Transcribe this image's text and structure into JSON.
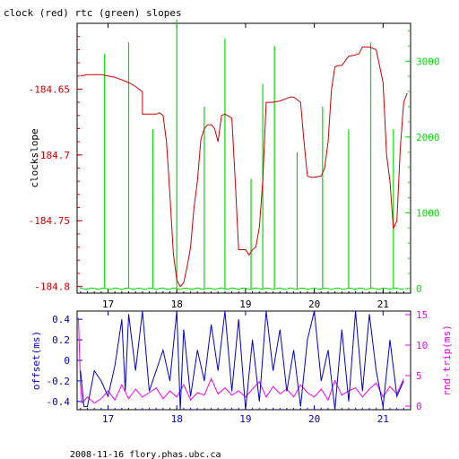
{
  "title": "clock (red) rtc (green) slopes",
  "footer": "2008-11-16 flory.phas.ubc.ca",
  "colors": {
    "clock": "#cc0000",
    "rtc": "#00dd00",
    "offset": "#0000cc",
    "rndtrip": "#ee00ee",
    "frame": "#000000"
  },
  "chart_data": [
    {
      "type": "line",
      "ylabel": "clockslope",
      "y2label": "",
      "xlim": [
        16.55,
        21.4
      ],
      "ylim": [
        -184.805,
        -184.6
      ],
      "y2lim": [
        -60,
        3500
      ],
      "xticks": [
        "17",
        "18",
        "19",
        "20",
        "21"
      ],
      "yticks": [
        "-184.65",
        "-184.7",
        "-184.75",
        "-184.8"
      ],
      "y2ticks": [
        "3000",
        "2000",
        "1000",
        "0"
      ],
      "grid": false,
      "series": [
        {
          "name": "clock",
          "x": [
            16.6,
            16.7,
            16.8,
            16.9,
            17.0,
            17.1,
            17.2,
            17.3,
            17.4,
            17.5,
            17.5,
            17.6,
            17.7,
            17.75,
            17.8,
            17.85,
            17.9,
            17.95,
            18.0,
            18.05,
            18.1,
            18.15,
            18.2,
            18.25,
            18.3,
            18.35,
            18.4,
            18.45,
            18.5,
            18.55,
            18.6,
            18.65,
            18.7,
            18.8,
            18.85,
            18.9,
            19.0,
            19.05,
            19.1,
            19.15,
            19.2,
            19.25,
            19.3,
            19.4,
            19.5,
            19.6,
            19.65,
            19.7,
            19.8,
            19.85,
            19.9,
            19.95,
            20.0,
            20.1,
            20.15,
            20.2,
            20.25,
            20.3,
            20.35,
            20.4,
            20.5,
            20.6,
            20.65,
            20.7,
            20.8,
            20.9,
            21.0,
            21.05,
            21.1,
            21.15,
            21.2,
            21.25,
            21.3,
            21.35
          ],
          "y": [
            -184.64,
            -184.639,
            -184.639,
            -184.639,
            -184.64,
            -184.641,
            -184.643,
            -184.645,
            -184.648,
            -184.652,
            -184.669,
            -184.669,
            -184.669,
            -184.668,
            -184.67,
            -184.69,
            -184.73,
            -184.775,
            -184.795,
            -184.8,
            -184.797,
            -184.785,
            -184.77,
            -184.74,
            -184.72,
            -184.688,
            -184.68,
            -184.677,
            -184.677,
            -184.68,
            -184.69,
            -184.67,
            -184.669,
            -184.672,
            -184.72,
            -184.772,
            -184.772,
            -184.776,
            -184.772,
            -184.77,
            -184.755,
            -184.72,
            -184.66,
            -184.66,
            -184.659,
            -184.657,
            -184.656,
            -184.656,
            -184.66,
            -184.69,
            -184.716,
            -184.717,
            -184.717,
            -184.716,
            -184.71,
            -184.69,
            -184.65,
            -184.633,
            -184.632,
            -184.632,
            -184.625,
            -184.624,
            -184.623,
            -184.618,
            -184.618,
            -184.62,
            -184.645,
            -184.7,
            -184.72,
            -184.756,
            -184.75,
            -184.695,
            -184.66,
            -184.653
          ]
        },
        {
          "name": "rtc",
          "axis": "right",
          "spike_x": [
            16.95,
            17.3,
            17.65,
            18.0,
            18.4,
            18.7,
            19.08,
            19.25,
            19.42,
            19.75,
            20.12,
            20.5,
            20.82,
            21.15
          ],
          "spike_y": [
            3100,
            3250,
            2100,
            3550,
            2400,
            3300,
            1450,
            2700,
            3200,
            1800,
            2400,
            2100,
            3250,
            2100
          ],
          "baseline": 0
        }
      ]
    },
    {
      "type": "line",
      "ylabel": "offset(ms)",
      "y2label": "rnd-trip(ms)",
      "xlim": [
        16.55,
        21.4
      ],
      "ylim": [
        -0.48,
        0.48
      ],
      "y2lim": [
        0,
        15
      ],
      "xticks": [
        "17",
        "18",
        "19",
        "20",
        "21"
      ],
      "yticks": [
        "0.4",
        "0.2",
        "0",
        "-0.2",
        "-0.4"
      ],
      "y2ticks": [
        "15",
        "10",
        "5",
        "0"
      ],
      "grid": false,
      "series": [
        {
          "name": "offset",
          "x": [
            16.6,
            16.65,
            16.7,
            16.8,
            16.9,
            17.0,
            17.1,
            17.2,
            17.25,
            17.3,
            17.4,
            17.5,
            17.6,
            17.7,
            17.8,
            17.9,
            18.0,
            18.05,
            18.1,
            18.2,
            18.3,
            18.4,
            18.5,
            18.6,
            18.7,
            18.8,
            18.9,
            19.0,
            19.1,
            19.2,
            19.3,
            19.4,
            19.5,
            19.6,
            19.7,
            19.8,
            19.9,
            20.0,
            20.1,
            20.2,
            20.3,
            20.4,
            20.5,
            20.6,
            20.7,
            20.8,
            20.9,
            21.0,
            21.1,
            21.2,
            21.3
          ],
          "y": [
            -0.1,
            -0.45,
            -0.45,
            -0.1,
            -0.2,
            -0.35,
            -0.05,
            0.4,
            -0.3,
            0.45,
            -0.1,
            0.5,
            -0.3,
            -0.1,
            0.1,
            -0.2,
            0.5,
            -0.5,
            0.3,
            -0.35,
            0.1,
            -0.2,
            0.35,
            -0.1,
            0.5,
            -0.3,
            0.4,
            -0.5,
            0.2,
            -0.4,
            0.5,
            -0.1,
            0.3,
            -0.3,
            0.1,
            -0.45,
            0.2,
            0.5,
            -0.2,
            0.1,
            -0.5,
            0.3,
            -0.4,
            0.5,
            -0.3,
            0.45,
            -0.1,
            -0.45,
            0.2,
            -0.35,
            -0.2
          ]
        },
        {
          "name": "rnd-trip",
          "axis": "right",
          "x": [
            16.57,
            16.6,
            16.62,
            16.7,
            16.8,
            16.9,
            17.0,
            17.1,
            17.2,
            17.3,
            17.4,
            17.5,
            17.6,
            17.7,
            17.8,
            17.9,
            18.0,
            18.1,
            18.2,
            18.3,
            18.4,
            18.5,
            18.6,
            18.7,
            18.8,
            18.9,
            19.0,
            19.1,
            19.2,
            19.3,
            19.4,
            19.5,
            19.6,
            19.7,
            19.8,
            19.9,
            20.0,
            20.1,
            20.2,
            20.3,
            20.4,
            20.5,
            20.6,
            20.7,
            20.8,
            20.9,
            21.0,
            21.1,
            21.2,
            21.3
          ],
          "y": [
            14.5,
            3.5,
            0.5,
            1.5,
            0.5,
            1.2,
            2.5,
            1.0,
            3.5,
            1.2,
            2.8,
            1.5,
            2.2,
            3.0,
            1.2,
            2.5,
            1.5,
            3.5,
            1.0,
            2.2,
            1.8,
            4.5,
            2.0,
            3.0,
            1.8,
            2.5,
            1.5,
            2.8,
            4.0,
            1.5,
            3.2,
            2.0,
            2.8,
            1.5,
            3.5,
            2.2,
            1.5,
            2.8,
            1.0,
            4.2,
            1.8,
            2.5,
            3.0,
            1.5,
            2.8,
            3.8,
            1.5,
            3.2,
            2.0,
            4.5
          ]
        }
      ]
    }
  ]
}
